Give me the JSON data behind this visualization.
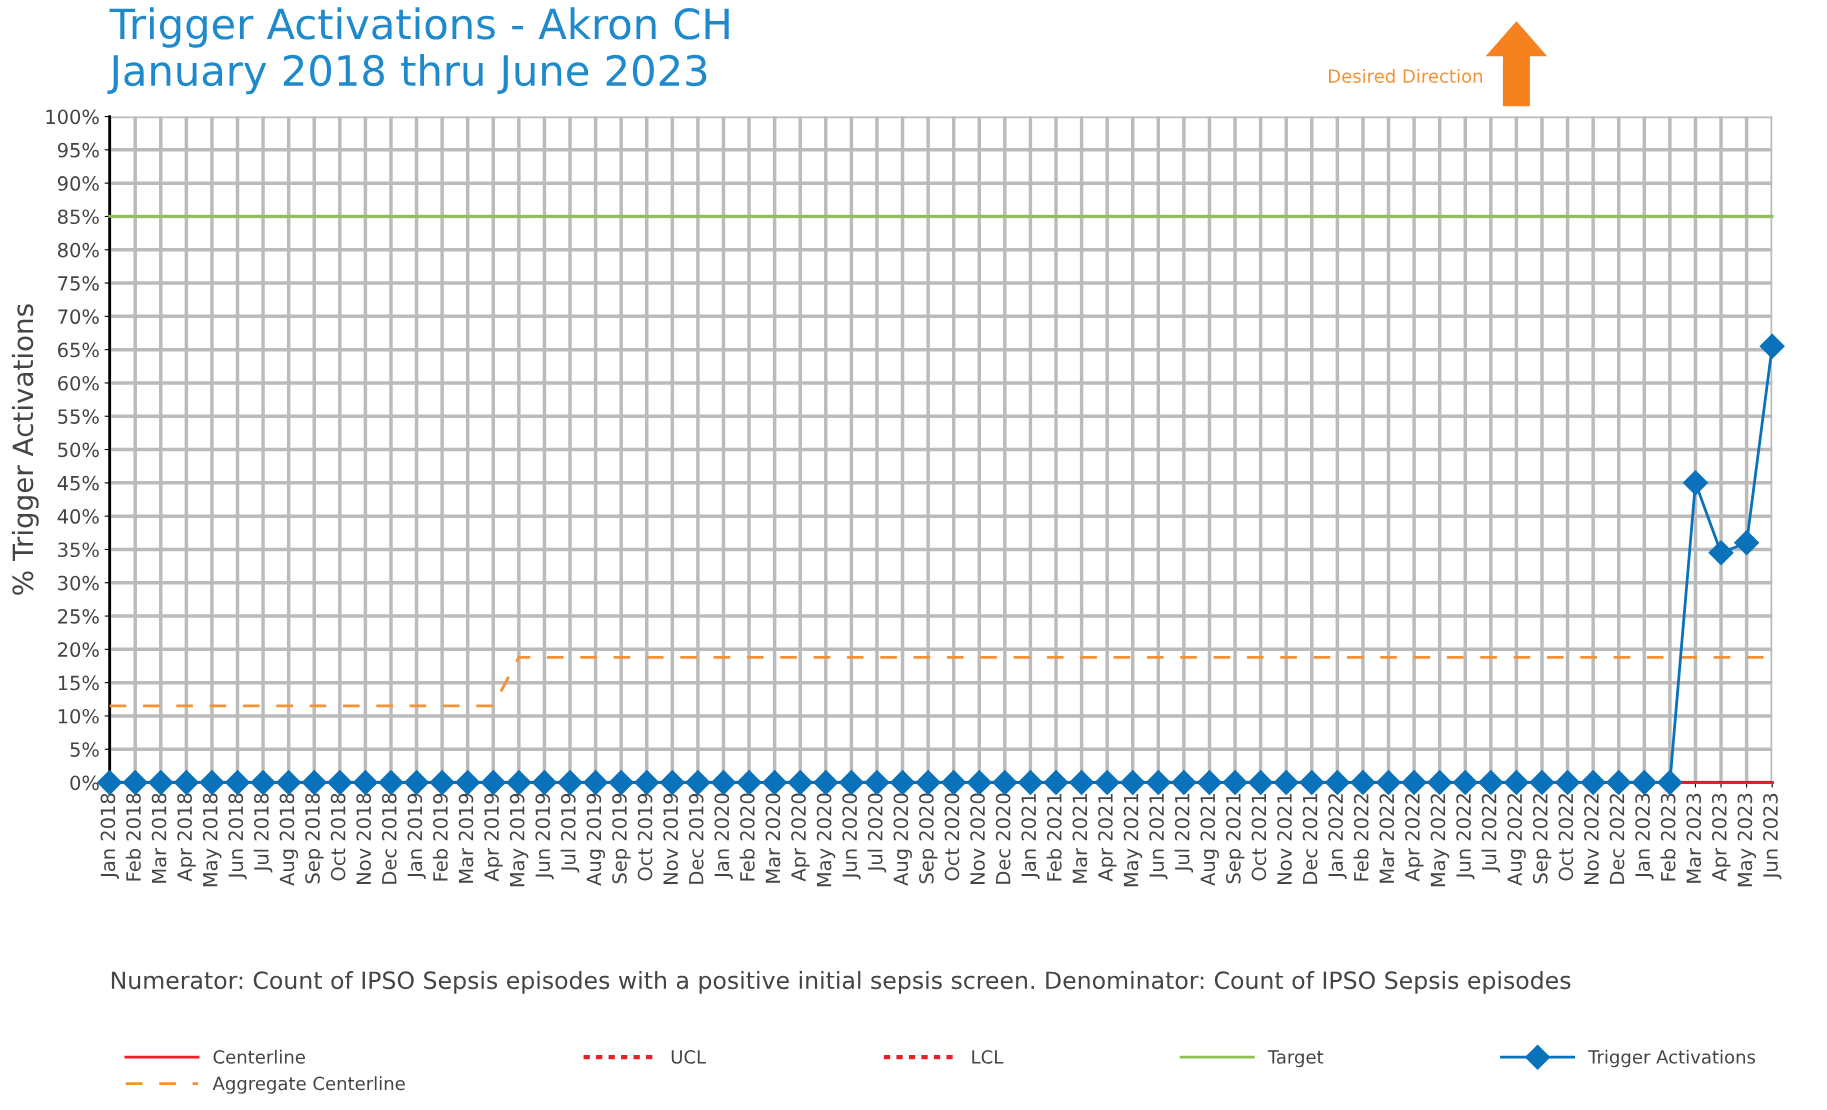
{
  "chart_data": {
    "type": "line",
    "title": "Trigger Activations - Akron CH\nJanuary 2018 thru June 2023",
    "ylabel": "% Trigger Activations",
    "categories": [
      "Jan 2018",
      "Feb 2018",
      "Mar 2018",
      "Apr 2018",
      "May 2018",
      "Jun 2018",
      "Jul 2018",
      "Aug 2018",
      "Sep 2018",
      "Oct 2018",
      "Nov 2018",
      "Dec 2018",
      "Jan 2019",
      "Feb 2019",
      "Mar 2019",
      "Apr 2019",
      "May 2019",
      "Jun 2019",
      "Jul 2019",
      "Aug 2019",
      "Sep 2019",
      "Oct 2019",
      "Nov 2019",
      "Dec 2019",
      "Jan 2020",
      "Feb 2020",
      "Mar 2020",
      "Apr 2020",
      "May 2020",
      "Jun 2020",
      "Jul 2020",
      "Aug 2020",
      "Sep 2020",
      "Oct 2020",
      "Nov 2020",
      "Dec 2020",
      "Jan 2021",
      "Feb 2021",
      "Mar 2021",
      "Apr 2021",
      "May 2021",
      "Jun 2021",
      "Jul 2021",
      "Aug 2021",
      "Sep 2021",
      "Oct 2021",
      "Nov 2021",
      "Dec 2021",
      "Jan 2022",
      "Feb 2022",
      "Mar 2022",
      "Apr 2022",
      "May 2022",
      "Jun 2022",
      "Jul 2022",
      "Aug 2022",
      "Sep 2022",
      "Oct 2022",
      "Nov 2022",
      "Dec 2022",
      "Jan 2023",
      "Feb 2023",
      "Mar 2023",
      "Apr 2023",
      "May 2023",
      "Jun 2023"
    ],
    "series": [
      {
        "name": "Centerline",
        "color": "#e8202a",
        "line_style": "solid",
        "marker": "none",
        "values": [
          null,
          null,
          null,
          null,
          null,
          null,
          null,
          null,
          null,
          null,
          null,
          null,
          null,
          null,
          null,
          null,
          null,
          null,
          null,
          null,
          null,
          null,
          null,
          null,
          null,
          null,
          null,
          null,
          null,
          null,
          null,
          null,
          null,
          null,
          null,
          null,
          null,
          null,
          null,
          null,
          null,
          null,
          null,
          null,
          null,
          null,
          null,
          null,
          null,
          null,
          null,
          null,
          null,
          null,
          null,
          null,
          null,
          null,
          null,
          null,
          null,
          0,
          0,
          0,
          0,
          0
        ]
      },
      {
        "name": "Aggregate Centerline",
        "color": "#f39237",
        "line_style": "dashed",
        "marker": "none",
        "values": [
          11.5,
          11.5,
          11.5,
          11.5,
          11.5,
          11.5,
          11.5,
          11.5,
          11.5,
          11.5,
          11.5,
          11.5,
          11.5,
          11.5,
          11.5,
          11.5,
          18.8,
          18.8,
          18.8,
          18.8,
          18.8,
          18.8,
          18.8,
          18.8,
          18.8,
          18.8,
          18.8,
          18.8,
          18.8,
          18.8,
          18.8,
          18.8,
          18.8,
          18.8,
          18.8,
          18.8,
          18.8,
          18.8,
          18.8,
          18.8,
          18.8,
          18.8,
          18.8,
          18.8,
          18.8,
          18.8,
          18.8,
          18.8,
          18.8,
          18.8,
          18.8,
          18.8,
          18.8,
          18.8,
          18.8,
          18.8,
          18.8,
          18.8,
          18.8,
          18.8,
          18.8,
          18.8,
          18.8,
          18.8,
          18.8,
          18.8
        ]
      },
      {
        "name": "UCL",
        "color": "#e8202a",
        "line_style": "dotted",
        "marker": "none",
        "values": [
          null,
          null,
          null,
          null,
          null,
          null,
          null,
          null,
          null,
          null,
          null,
          null,
          null,
          null,
          null,
          null,
          null,
          null,
          null,
          null,
          null,
          null,
          null,
          null,
          null,
          null,
          null,
          null,
          null,
          null,
          null,
          null,
          null,
          null,
          null,
          null,
          null,
          null,
          null,
          null,
          null,
          null,
          null,
          null,
          null,
          null,
          null,
          null,
          null,
          null,
          null,
          null,
          null,
          null,
          null,
          null,
          null,
          null,
          null,
          null,
          null,
          null,
          null,
          null,
          null,
          null
        ]
      },
      {
        "name": "LCL",
        "color": "#e8202a",
        "line_style": "dotted",
        "marker": "none",
        "values": [
          null,
          null,
          null,
          null,
          null,
          null,
          null,
          null,
          null,
          null,
          null,
          null,
          null,
          null,
          null,
          null,
          null,
          null,
          null,
          null,
          null,
          null,
          null,
          null,
          null,
          null,
          null,
          null,
          null,
          null,
          null,
          null,
          null,
          null,
          null,
          null,
          null,
          null,
          null,
          null,
          null,
          null,
          null,
          null,
          null,
          null,
          null,
          null,
          null,
          null,
          null,
          null,
          null,
          null,
          null,
          null,
          null,
          null,
          null,
          null,
          null,
          null,
          null,
          null,
          null,
          null
        ]
      },
      {
        "name": "Target",
        "color": "#8cc152",
        "line_style": "solid",
        "marker": "none",
        "values": [
          85,
          85,
          85,
          85,
          85,
          85,
          85,
          85,
          85,
          85,
          85,
          85,
          85,
          85,
          85,
          85,
          85,
          85,
          85,
          85,
          85,
          85,
          85,
          85,
          85,
          85,
          85,
          85,
          85,
          85,
          85,
          85,
          85,
          85,
          85,
          85,
          85,
          85,
          85,
          85,
          85,
          85,
          85,
          85,
          85,
          85,
          85,
          85,
          85,
          85,
          85,
          85,
          85,
          85,
          85,
          85,
          85,
          85,
          85,
          85,
          85,
          85,
          85,
          85,
          85,
          85
        ]
      },
      {
        "name": "Trigger Activations",
        "color": "#0a72bb",
        "line_style": "solid",
        "marker": "diamond",
        "values": [
          0,
          0,
          0,
          0,
          0,
          0,
          0,
          0,
          0,
          0,
          0,
          0,
          0,
          0,
          0,
          0,
          0,
          0,
          0,
          0,
          0,
          0,
          0,
          0,
          0,
          0,
          0,
          0,
          0,
          0,
          0,
          0,
          0,
          0,
          0,
          0,
          0,
          0,
          0,
          0,
          0,
          0,
          0,
          0,
          0,
          0,
          0,
          0,
          0,
          0,
          0,
          0,
          0,
          0,
          0,
          0,
          0,
          0,
          0,
          0,
          0,
          0,
          45,
          34.5,
          36,
          65.5
        ]
      }
    ],
    "ylim": [
      0,
      100
    ],
    "yticks": [
      {
        "value": 0,
        "label": "0%"
      },
      {
        "value": 5,
        "label": "5%"
      },
      {
        "value": 10,
        "label": "10%"
      },
      {
        "value": 15,
        "label": "15%"
      },
      {
        "value": 20,
        "label": "20%"
      },
      {
        "value": 25,
        "label": "25%"
      },
      {
        "value": 30,
        "label": "30%"
      },
      {
        "value": 35,
        "label": "35%"
      },
      {
        "value": 40,
        "label": "40%"
      },
      {
        "value": 45,
        "label": "45%"
      },
      {
        "value": 50,
        "label": "50%"
      },
      {
        "value": 55,
        "label": "55%"
      },
      {
        "value": 60,
        "label": "60%"
      },
      {
        "value": 65,
        "label": "65%"
      },
      {
        "value": 70,
        "label": "70%"
      },
      {
        "value": 75,
        "label": "75%"
      },
      {
        "value": 80,
        "label": "80%"
      },
      {
        "value": 85,
        "label": "85%"
      },
      {
        "value": 90,
        "label": "90%"
      },
      {
        "value": 95,
        "label": "95%"
      },
      {
        "value": 100,
        "label": "100%"
      }
    ],
    "grid": true,
    "legend": "bottom",
    "annotations": [
      "Desired Direction",
      "Numerator: Count of IPSO Sepsis episodes with a positive initial sepsis screen. Denominator: Count of IPSO Sepsis episodes"
    ]
  }
}
